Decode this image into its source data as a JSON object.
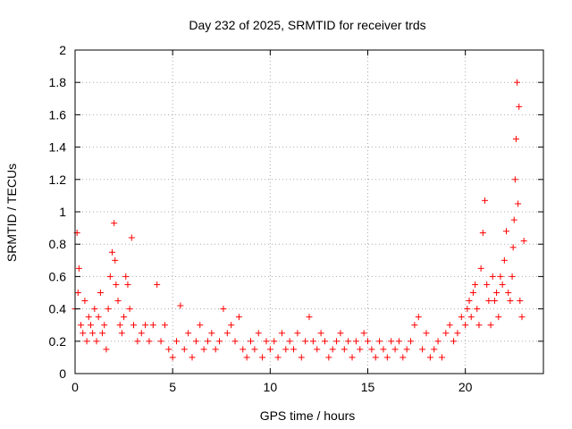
{
  "chart_data": {
    "type": "scatter",
    "title": "Day 232 of 2025, SRMTID for receiver trds",
    "xlabel": "GPS time / hours",
    "ylabel": "SRMTID / TECUs",
    "xlim": [
      0,
      24
    ],
    "ylim": [
      0,
      2
    ],
    "x_ticks": [
      "0",
      "5",
      "10",
      "15",
      "20"
    ],
    "x_tick_values": [
      0,
      5,
      10,
      15,
      20
    ],
    "y_ticks": [
      "0",
      "0.2",
      "0.4",
      "0.6",
      "0.8",
      "1",
      "1.2",
      "1.4",
      "1.6",
      "1.8",
      "2"
    ],
    "y_tick_values": [
      0,
      0.2,
      0.4,
      0.6,
      0.8,
      1.0,
      1.2,
      1.4,
      1.6,
      1.8,
      2.0
    ],
    "grid": true,
    "marker": "+",
    "colors": {
      "series": "#ff0000",
      "grid": "#aaaaaa",
      "axes": "#000000"
    },
    "series": [
      {
        "name": "SRMTID",
        "x": [
          0.0,
          0.1,
          0.15,
          0.2,
          0.3,
          0.4,
          0.5,
          0.6,
          0.7,
          0.8,
          0.9,
          1.0,
          1.1,
          1.2,
          1.3,
          1.4,
          1.5,
          1.6,
          1.7,
          1.8,
          1.9,
          2.0,
          2.05,
          2.1,
          2.2,
          2.3,
          2.4,
          2.5,
          2.6,
          2.7,
          2.8,
          2.9,
          3.0,
          3.2,
          3.4,
          3.6,
          3.8,
          4.0,
          4.2,
          4.4,
          4.6,
          4.8,
          5.0,
          5.2,
          5.4,
          5.6,
          5.8,
          6.0,
          6.2,
          6.4,
          6.6,
          6.8,
          7.0,
          7.2,
          7.4,
          7.6,
          7.8,
          8.0,
          8.2,
          8.4,
          8.6,
          8.8,
          9.0,
          9.2,
          9.4,
          9.6,
          9.8,
          10.0,
          10.2,
          10.4,
          10.6,
          10.8,
          11.0,
          11.2,
          11.4,
          11.6,
          11.8,
          12.0,
          12.2,
          12.4,
          12.6,
          12.8,
          13.0,
          13.2,
          13.4,
          13.6,
          13.8,
          14.0,
          14.2,
          14.4,
          14.6,
          14.8,
          15.0,
          15.2,
          15.4,
          15.6,
          15.8,
          16.0,
          16.2,
          16.4,
          16.6,
          16.8,
          17.0,
          17.2,
          17.4,
          17.6,
          17.8,
          18.0,
          18.2,
          18.4,
          18.6,
          18.8,
          19.0,
          19.2,
          19.4,
          19.6,
          19.8,
          20.0,
          20.1,
          20.2,
          20.3,
          20.4,
          20.5,
          20.6,
          20.7,
          20.8,
          20.9,
          21.0,
          21.1,
          21.2,
          21.3,
          21.4,
          21.5,
          21.6,
          21.7,
          21.8,
          21.9,
          22.0,
          22.1,
          22.2,
          22.3,
          22.4,
          22.45,
          22.5,
          22.55,
          22.6,
          22.65,
          22.7,
          22.75,
          22.8,
          22.9,
          23.0
        ],
        "y": [
          0.4,
          0.87,
          0.5,
          0.65,
          0.3,
          0.25,
          0.45,
          0.2,
          0.35,
          0.3,
          0.25,
          0.4,
          0.2,
          0.35,
          0.5,
          0.25,
          0.3,
          0.15,
          0.4,
          0.6,
          0.75,
          0.93,
          0.7,
          0.55,
          0.45,
          0.3,
          0.25,
          0.35,
          0.6,
          0.55,
          0.4,
          0.84,
          0.3,
          0.2,
          0.25,
          0.3,
          0.2,
          0.3,
          0.55,
          0.2,
          0.3,
          0.15,
          0.1,
          0.2,
          0.42,
          0.15,
          0.25,
          0.1,
          0.2,
          0.3,
          0.15,
          0.2,
          0.25,
          0.15,
          0.2,
          0.4,
          0.25,
          0.3,
          0.2,
          0.35,
          0.15,
          0.1,
          0.2,
          0.15,
          0.25,
          0.1,
          0.2,
          0.15,
          0.2,
          0.1,
          0.25,
          0.15,
          0.2,
          0.15,
          0.25,
          0.1,
          0.2,
          0.35,
          0.2,
          0.15,
          0.25,
          0.2,
          0.1,
          0.15,
          0.2,
          0.25,
          0.15,
          0.2,
          0.1,
          0.2,
          0.15,
          0.25,
          0.2,
          0.15,
          0.1,
          0.2,
          0.15,
          0.1,
          0.2,
          0.15,
          0.2,
          0.1,
          0.15,
          0.2,
          0.3,
          0.35,
          0.15,
          0.25,
          0.1,
          0.15,
          0.2,
          0.1,
          0.25,
          0.3,
          0.2,
          0.25,
          0.35,
          0.3,
          0.4,
          0.45,
          0.35,
          0.5,
          0.55,
          0.4,
          0.3,
          0.65,
          0.87,
          1.07,
          0.55,
          0.45,
          0.3,
          0.6,
          0.45,
          0.5,
          0.35,
          0.6,
          0.55,
          0.7,
          0.88,
          0.5,
          0.45,
          0.6,
          0.78,
          0.95,
          1.2,
          1.45,
          1.8,
          1.05,
          1.65,
          0.45,
          0.35,
          0.82
        ]
      }
    ]
  }
}
